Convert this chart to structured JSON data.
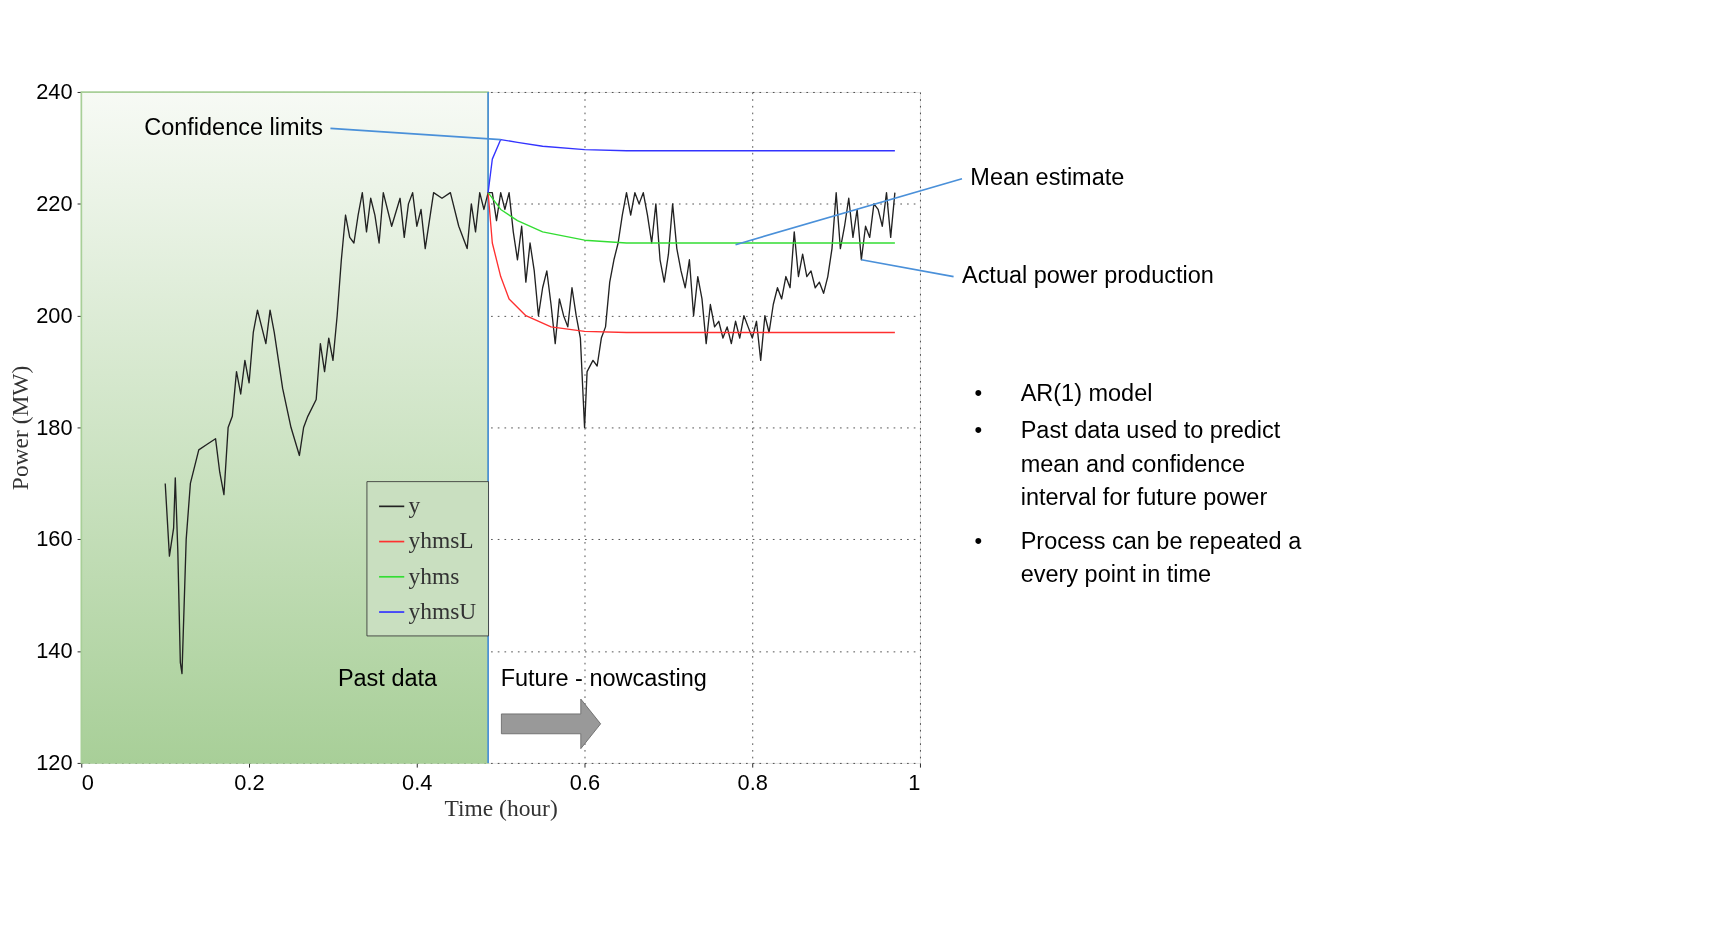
{
  "chart_data": {
    "type": "line",
    "xlabel": "Time (hour)",
    "ylabel": "Power (MW)",
    "xlim": [
      0,
      1
    ],
    "ylim": [
      120,
      240
    ],
    "xticks": [
      0,
      0.2,
      0.4,
      0.6,
      0.8,
      1
    ],
    "yticks": [
      120,
      140,
      160,
      180,
      200,
      220,
      240
    ],
    "grid": true,
    "legend": "bottom",
    "line_style": "solid",
    "marker": "none",
    "series": [
      {
        "name": "y",
        "color": "#222222",
        "x": [
          0.1,
          0.105,
          0.11,
          0.112,
          0.115,
          0.118,
          0.12,
          0.125,
          0.13,
          0.14,
          0.15,
          0.16,
          0.165,
          0.17,
          0.175,
          0.18,
          0.185,
          0.19,
          0.195,
          0.2,
          0.205,
          0.21,
          0.215,
          0.22,
          0.225,
          0.23,
          0.24,
          0.25,
          0.26,
          0.265,
          0.27,
          0.28,
          0.285,
          0.29,
          0.295,
          0.3,
          0.305,
          0.31,
          0.315,
          0.32,
          0.325,
          0.33,
          0.335,
          0.34,
          0.345,
          0.35,
          0.355,
          0.36,
          0.37,
          0.38,
          0.385,
          0.39,
          0.395,
          0.4,
          0.405,
          0.41,
          0.42,
          0.43,
          0.44,
          0.45,
          0.46,
          0.465,
          0.47,
          0.475,
          0.48,
          0.485,
          0.49,
          0.495,
          0.5,
          0.505,
          0.51,
          0.515,
          0.52,
          0.525,
          0.53,
          0.535,
          0.54,
          0.545,
          0.55,
          0.555,
          0.56,
          0.565,
          0.57,
          0.575,
          0.58,
          0.585,
          0.59,
          0.595,
          0.6,
          0.603,
          0.61,
          0.615,
          0.62,
          0.625,
          0.63,
          0.635,
          0.64,
          0.645,
          0.65,
          0.655,
          0.66,
          0.665,
          0.67,
          0.675,
          0.68,
          0.685,
          0.69,
          0.695,
          0.7,
          0.705,
          0.71,
          0.715,
          0.72,
          0.725,
          0.73,
          0.735,
          0.74,
          0.745,
          0.75,
          0.755,
          0.76,
          0.765,
          0.77,
          0.775,
          0.78,
          0.785,
          0.79,
          0.795,
          0.8,
          0.805,
          0.81,
          0.815,
          0.82,
          0.825,
          0.83,
          0.835,
          0.84,
          0.845,
          0.85,
          0.855,
          0.86,
          0.865,
          0.87,
          0.875,
          0.88,
          0.885,
          0.89,
          0.895,
          0.9,
          0.905,
          0.91,
          0.915,
          0.92,
          0.925,
          0.93,
          0.935,
          0.94,
          0.945,
          0.95,
          0.955,
          0.96,
          0.965,
          0.97
        ],
        "values": [
          170,
          157,
          162,
          171,
          158,
          138,
          136,
          160,
          170,
          176,
          177,
          178,
          172,
          168,
          180,
          182,
          190,
          186,
          192,
          188,
          197,
          201,
          198,
          195,
          201,
          197,
          187,
          180,
          175,
          180,
          182,
          185,
          195,
          190,
          196,
          192,
          200,
          210,
          218,
          214,
          213,
          218,
          222,
          215,
          221,
          218,
          213,
          222,
          216,
          221,
          214,
          220,
          222,
          216,
          219,
          212,
          222,
          221,
          222,
          216,
          212,
          220,
          215,
          222,
          219,
          222,
          222,
          217,
          222,
          219,
          222,
          215,
          210,
          216,
          206,
          213,
          208,
          200,
          205,
          208,
          202,
          195,
          203,
          200,
          198,
          205,
          200,
          196,
          180,
          190,
          192,
          191,
          196,
          198,
          206,
          210,
          213,
          218,
          222,
          218,
          222,
          220,
          222,
          218,
          213,
          220,
          210,
          206,
          211,
          220,
          212,
          208,
          205,
          210,
          200,
          207,
          203,
          195,
          202,
          198,
          199,
          196,
          198,
          195,
          199,
          196,
          200,
          198,
          196,
          199,
          192,
          200,
          197,
          202,
          205,
          203,
          207,
          205,
          215,
          207,
          211,
          207,
          208,
          205,
          206,
          204,
          207,
          212,
          222,
          212,
          216,
          221,
          214,
          219,
          210,
          216,
          214,
          220,
          219,
          216,
          222,
          214,
          222
        ]
      },
      {
        "name": "yhmsL",
        "color": "#ff3030",
        "x": [
          0.485,
          0.49,
          0.5,
          0.51,
          0.53,
          0.56,
          0.6,
          0.65,
          0.97
        ],
        "values": [
          222,
          213,
          207,
          203,
          200,
          198,
          197.2,
          197,
          197
        ]
      },
      {
        "name": "yhms",
        "color": "#33dd33",
        "x": [
          0.485,
          0.5,
          0.52,
          0.55,
          0.6,
          0.65,
          0.97
        ],
        "values": [
          222,
          219,
          217,
          215,
          213.5,
          213,
          213
        ]
      },
      {
        "name": "yhmsU",
        "color": "#3333ff",
        "x": [
          0.485,
          0.49,
          0.5,
          0.52,
          0.55,
          0.6,
          0.65,
          0.97
        ],
        "values": [
          222,
          228,
          231.5,
          231,
          230.3,
          229.7,
          229.5,
          229.5
        ]
      }
    ],
    "bands": [
      {
        "axis": "x",
        "from": 0,
        "to": 0.485,
        "color": "#a8cf98"
      }
    ],
    "ref_lines": [
      {
        "axis": "x",
        "value": 0.485,
        "color": "#4a90d9"
      }
    ],
    "annotations": [
      {
        "text": "Confidence limits",
        "x": 0.5,
        "y": 231.5
      },
      {
        "text": "Mean estimate",
        "x": 0.78,
        "y": 212.7
      },
      {
        "text": "Actual power production",
        "x": 0.93,
        "y": 210
      },
      "Past data",
      "Future - nowcasting",
      "• AR(1) model",
      "• Past data used to predict mean and confidence interval for future power",
      "• Process can be repeated a every point in time"
    ]
  }
}
